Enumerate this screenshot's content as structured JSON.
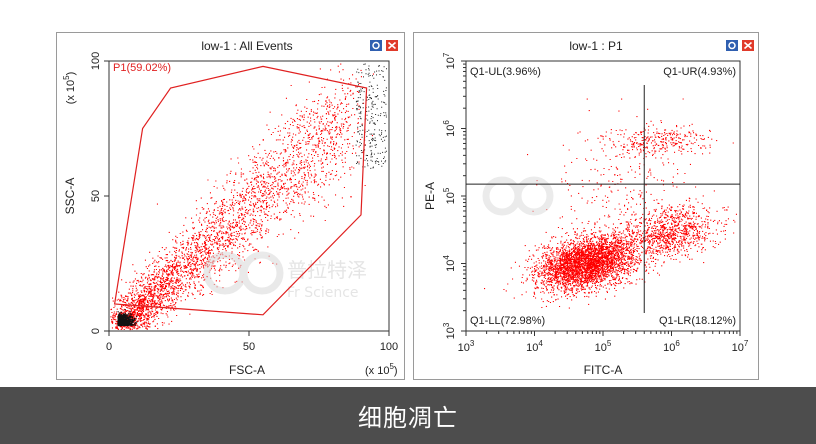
{
  "caption": "细胞凋亡",
  "watermark": {
    "cn": "普拉特泽",
    "en": "Fr Science"
  },
  "window_buttons": {
    "gear": "settings-icon",
    "close": "close-icon"
  },
  "colors": {
    "dots": "#ff0000",
    "gate": "#e02020",
    "caption_bg": "#4d4d4d",
    "accent_blue": "#2f5fb0"
  },
  "chart_data": [
    {
      "type": "scatter",
      "title": "low-1 : All Events",
      "xlabel": "FSC-A",
      "ylabel": "SSC-A",
      "xunit": "(x 10^5)",
      "yunit": "(x 10^5)",
      "xlim": [
        0,
        100
      ],
      "ylim": [
        0,
        100
      ],
      "xticks": [
        "0",
        "50",
        "100"
      ],
      "yticks": [
        "0",
        "50",
        "100"
      ],
      "gate": {
        "name": "P1",
        "label": "P1(59.02%)",
        "percent": 59.02,
        "polygon": [
          [
            2,
            10
          ],
          [
            12,
            75
          ],
          [
            22,
            90
          ],
          [
            55,
            98
          ],
          [
            92,
            90
          ],
          [
            90,
            43
          ],
          [
            55,
            6
          ],
          [
            2,
            10
          ]
        ]
      }
    },
    {
      "type": "scatter",
      "title": "low-1 : P1",
      "xlabel": "FITC-A",
      "ylabel": "PE-A",
      "scale": "log",
      "xlim": [
        1000,
        10000000
      ],
      "ylim": [
        1000,
        10000000
      ],
      "xticks": [
        "10^3",
        "10^4",
        "10^5",
        "10^6",
        "10^7"
      ],
      "yticks": [
        "10^3",
        "10^4",
        "10^5",
        "10^6",
        "10^7"
      ],
      "quadrant_divider": {
        "x": 400000,
        "y": 150000
      },
      "quadrants": [
        {
          "label": "Q1-UL(3.96%)",
          "percent": 3.96,
          "pos": "top-left"
        },
        {
          "label": "Q1-UR(4.93%)",
          "percent": 4.93,
          "pos": "top-right"
        },
        {
          "label": "Q1-LL(72.98%)",
          "percent": 72.98,
          "pos": "bottom-left"
        },
        {
          "label": "Q1-LR(18.12%)",
          "percent": 18.12,
          "pos": "bottom-right"
        }
      ]
    }
  ]
}
